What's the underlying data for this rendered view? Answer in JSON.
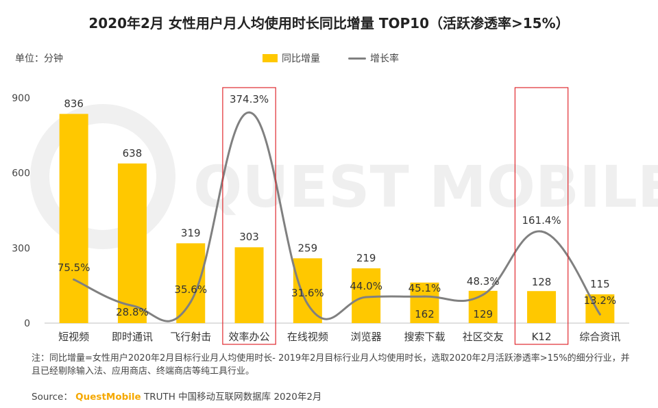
{
  "chart_data": {
    "type": "bar+line",
    "title": "2020年2月 女性用户月人均使用时长同比增量 TOP10（活跃渗透率>15%）",
    "unit_label": "单位：分钟",
    "categories": [
      "短视频",
      "即时通讯",
      "飞行射击",
      "效率办公",
      "在线视频",
      "浏览器",
      "搜索下载",
      "社区交友",
      "K12",
      "综合资讯"
    ],
    "series": [
      {
        "name": "同比增量",
        "type": "bar",
        "color": "#FFC800",
        "values": [
          836,
          638,
          319,
          303,
          259,
          219,
          162,
          129,
          128,
          115
        ],
        "labels": [
          "836",
          "638",
          "319",
          "303",
          "259",
          "219",
          "162",
          "129",
          "128",
          "115"
        ]
      },
      {
        "name": "增长率",
        "type": "line",
        "color": "#808080",
        "values": [
          75.5,
          28.8,
          35.6,
          374.3,
          31.6,
          44.0,
          45.1,
          48.3,
          161.4,
          13.2
        ],
        "labels": [
          "75.5%",
          "28.8%",
          "35.6%",
          "374.3%",
          "31.6%",
          "44.0%",
          "45.1%",
          "48.3%",
          "161.4%",
          "13.2%"
        ]
      }
    ],
    "y_axis": {
      "min": 0,
      "max": 900,
      "ticks": [
        0,
        300,
        600,
        900
      ]
    },
    "grid": false,
    "legend_position": "top-center",
    "highlighted_categories": [
      "效率办公",
      "K12"
    ],
    "highlight_color": "#E0282E"
  },
  "legend": {
    "bar_label": "同比增量",
    "line_label": "增长率",
    "bar_color": "#FFC800",
    "line_color": "#808080"
  },
  "note": {
    "text": "注：同比增量=女性用户2020年2月目标行业月人均使用时长- 2019年2月目标行业月人均使用时长，选取2020年2月活跃渗透率>15%的细分行业，并且已经剔除输入法、应用商店、终端商店等纯工具行业。"
  },
  "source": {
    "prefix": "Source：",
    "brand": "QuestMobile",
    "rest": " TRUTH 中国移动互联网数据库 2020年2月"
  },
  "watermark": {
    "text": "QUEST MOBILE"
  }
}
